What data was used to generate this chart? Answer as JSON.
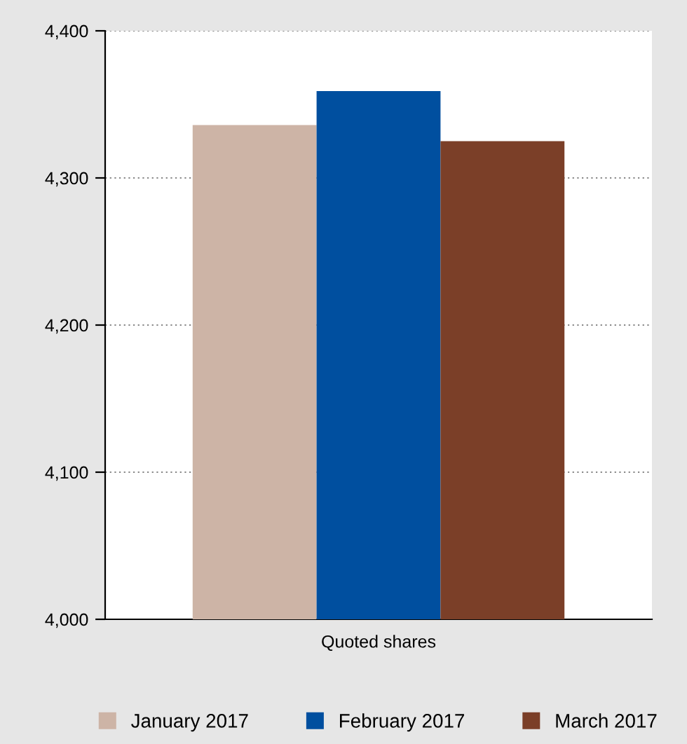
{
  "chart_data": {
    "type": "bar",
    "categories": [
      "Quoted shares"
    ],
    "series": [
      {
        "name": "January 2017",
        "color": "#cdb4a6",
        "values": [
          4336
        ]
      },
      {
        "name": "February 2017",
        "color": "#004f9f",
        "values": [
          4359
        ]
      },
      {
        "name": "March 2017",
        "color": "#7b3f28",
        "values": [
          4325
        ]
      }
    ],
    "ylim": [
      4000,
      4400
    ],
    "yticks": [
      {
        "value": 4000,
        "label": "4,000"
      },
      {
        "value": 4100,
        "label": "4,100"
      },
      {
        "value": 4200,
        "label": "4,200"
      },
      {
        "value": 4300,
        "label": "4,300"
      },
      {
        "value": 4400,
        "label": "4,400"
      }
    ],
    "grid": "y",
    "legend": "bottom"
  }
}
